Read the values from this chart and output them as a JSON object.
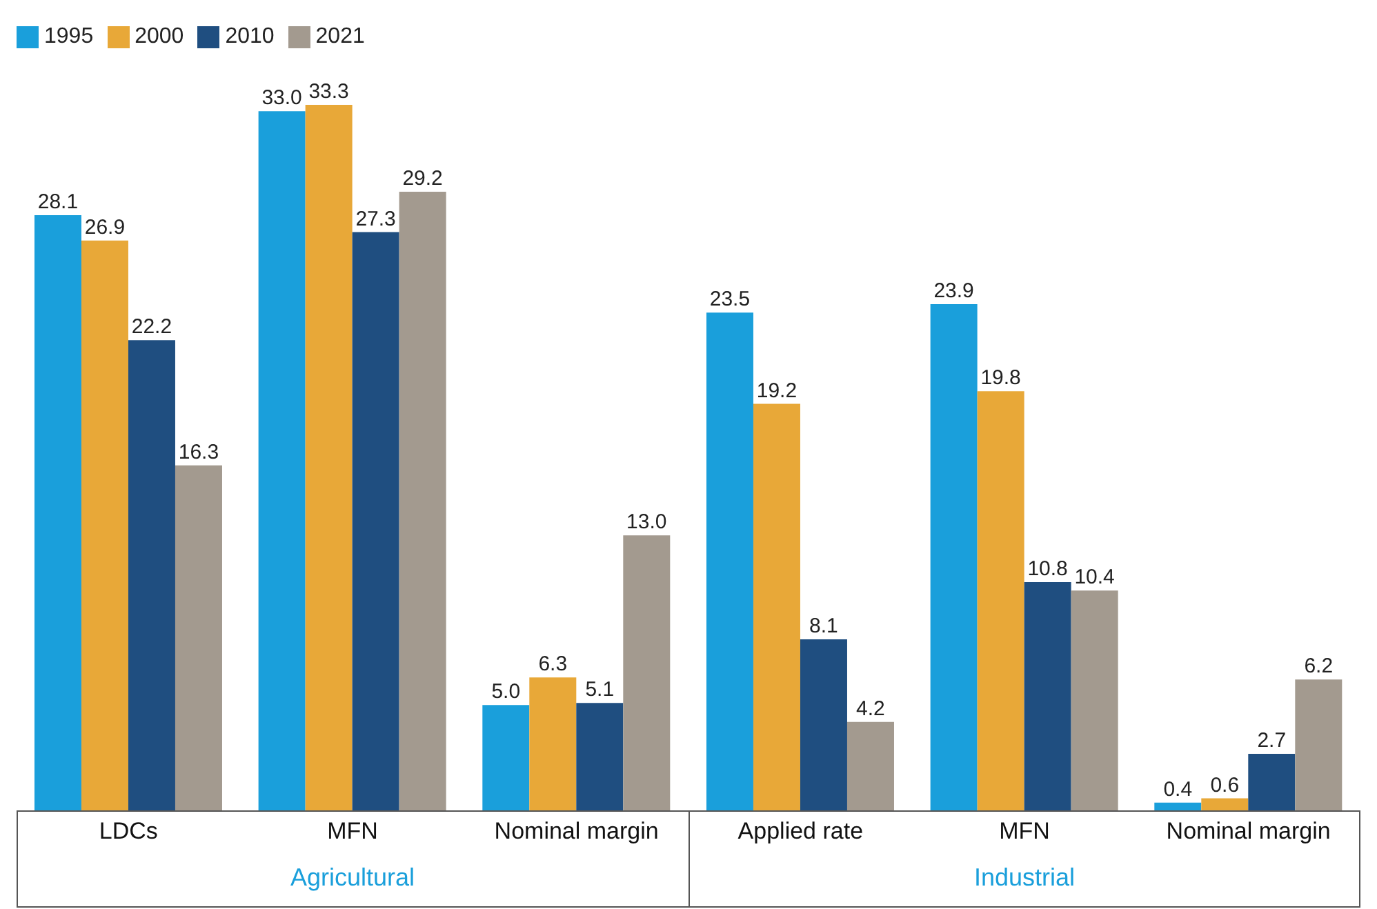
{
  "chart_data": {
    "type": "bar",
    "categories": [
      "LDCs",
      "MFN",
      "Nominal margin",
      "Applied rate",
      "MFN",
      "Nominal margin"
    ],
    "series": [
      {
        "name": "1995",
        "color": "#1a9fdb",
        "values": [
          28.1,
          33,
          5,
          23.5,
          23.9,
          0.4
        ],
        "value_labels": [
          "28.1",
          "33.0",
          "5.0",
          "23.5",
          "23.9",
          "0.4"
        ]
      },
      {
        "name": "2000",
        "color": "#e8a838",
        "values": [
          26.9,
          33.3,
          6.3,
          19.2,
          19.8,
          0.6
        ],
        "value_labels": [
          "26.9",
          "33.3",
          "6.3",
          "19.2",
          "19.8",
          "0.6"
        ]
      },
      {
        "name": "2010",
        "color": "#1f4e80",
        "values": [
          22.2,
          27.3,
          5.1,
          8.1,
          10.8,
          2.7
        ],
        "value_labels": [
          "22.2",
          "27.3",
          "5.1",
          "8.1",
          "10.8",
          "2.7"
        ]
      },
      {
        "name": "2021",
        "color": "#a39a8f",
        "values": [
          16.3,
          29.2,
          13,
          4.2,
          10.4,
          6.2
        ],
        "value_labels": [
          "16.3",
          "29.2",
          "13.0",
          "4.2",
          "10.4",
          "6.2"
        ]
      }
    ],
    "annotations": [
      "Agricultural",
      "Industrial"
    ],
    "legend": "top left"
  }
}
